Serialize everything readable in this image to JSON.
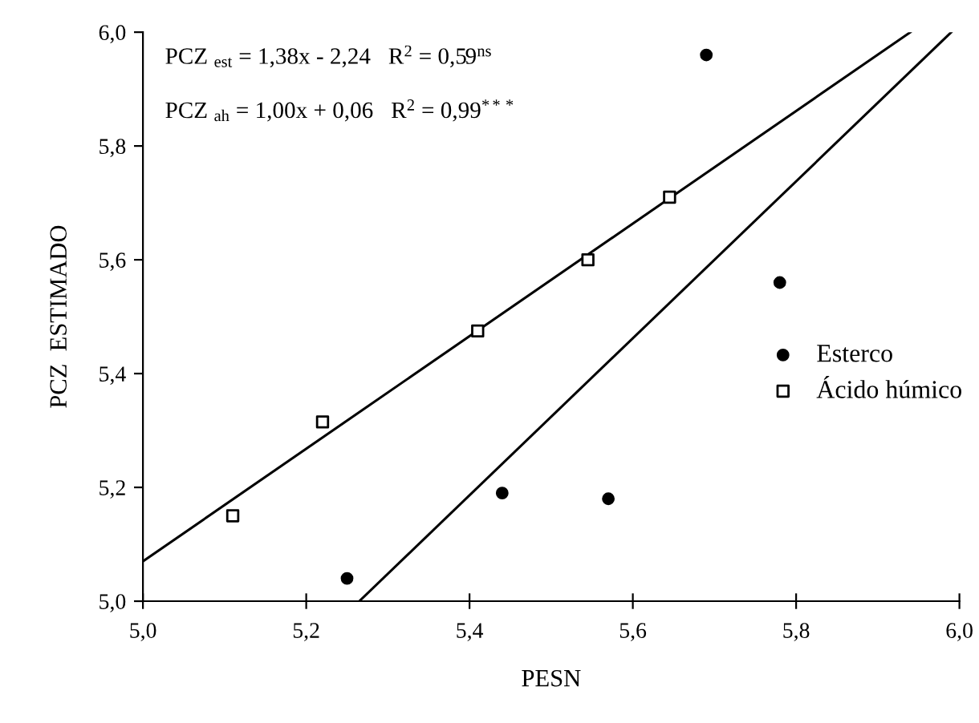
{
  "chart_data": {
    "type": "scatter",
    "xlabel": "PESN",
    "ylabel": "PCZ  ESTIMADO",
    "xlim": [
      5.0,
      6.0
    ],
    "ylim": [
      5.0,
      6.0
    ],
    "xticks": [
      {
        "value": 5.0,
        "label": "5,0"
      },
      {
        "value": 5.2,
        "label": "5,2"
      },
      {
        "value": 5.4,
        "label": "5,4"
      },
      {
        "value": 5.6,
        "label": "5,6"
      },
      {
        "value": 5.8,
        "label": "5,8"
      },
      {
        "value": 6.0,
        "label": "6,0"
      }
    ],
    "yticks": [
      {
        "value": 5.0,
        "label": "5,0"
      },
      {
        "value": 5.2,
        "label": "5,2"
      },
      {
        "value": 5.4,
        "label": "5,4"
      },
      {
        "value": 5.6,
        "label": "5,6"
      },
      {
        "value": 5.8,
        "label": "5,8"
      },
      {
        "value": 6.0,
        "label": "6,0"
      }
    ],
    "grid": false,
    "legend": "right",
    "series": [
      {
        "name": "Esterco",
        "marker": "circle",
        "color": "#000000",
        "x": [
          5.25,
          5.44,
          5.57,
          5.69,
          5.78
        ],
        "values": [
          5.04,
          5.19,
          5.18,
          5.96,
          5.56
        ]
      },
      {
        "name": "Ácido húmico",
        "marker": "square",
        "color": "#000000",
        "x": [
          5.11,
          5.22,
          5.41,
          5.545,
          5.645
        ],
        "values": [
          5.15,
          5.315,
          5.475,
          5.6,
          5.71
        ]
      },
      {
        "type": "line",
        "color": "#000000",
        "x": [
          5.265,
          5.99
        ],
        "values": [
          5.0,
          6.0
        ]
      },
      {
        "type": "line",
        "color": "#000000",
        "x": [
          5.0,
          5.94
        ],
        "values": [
          5.07,
          6.0
        ]
      }
    ],
    "annotations": [
      "PCZ $_{est}$ = 1,38x - 2,24   R$^{2}$ = 0,59$^{ns}$",
      "PCZ $_{ah}$ = 1,00x + 0,06   R$^{2}$ = 0,99$^{***}$"
    ]
  }
}
